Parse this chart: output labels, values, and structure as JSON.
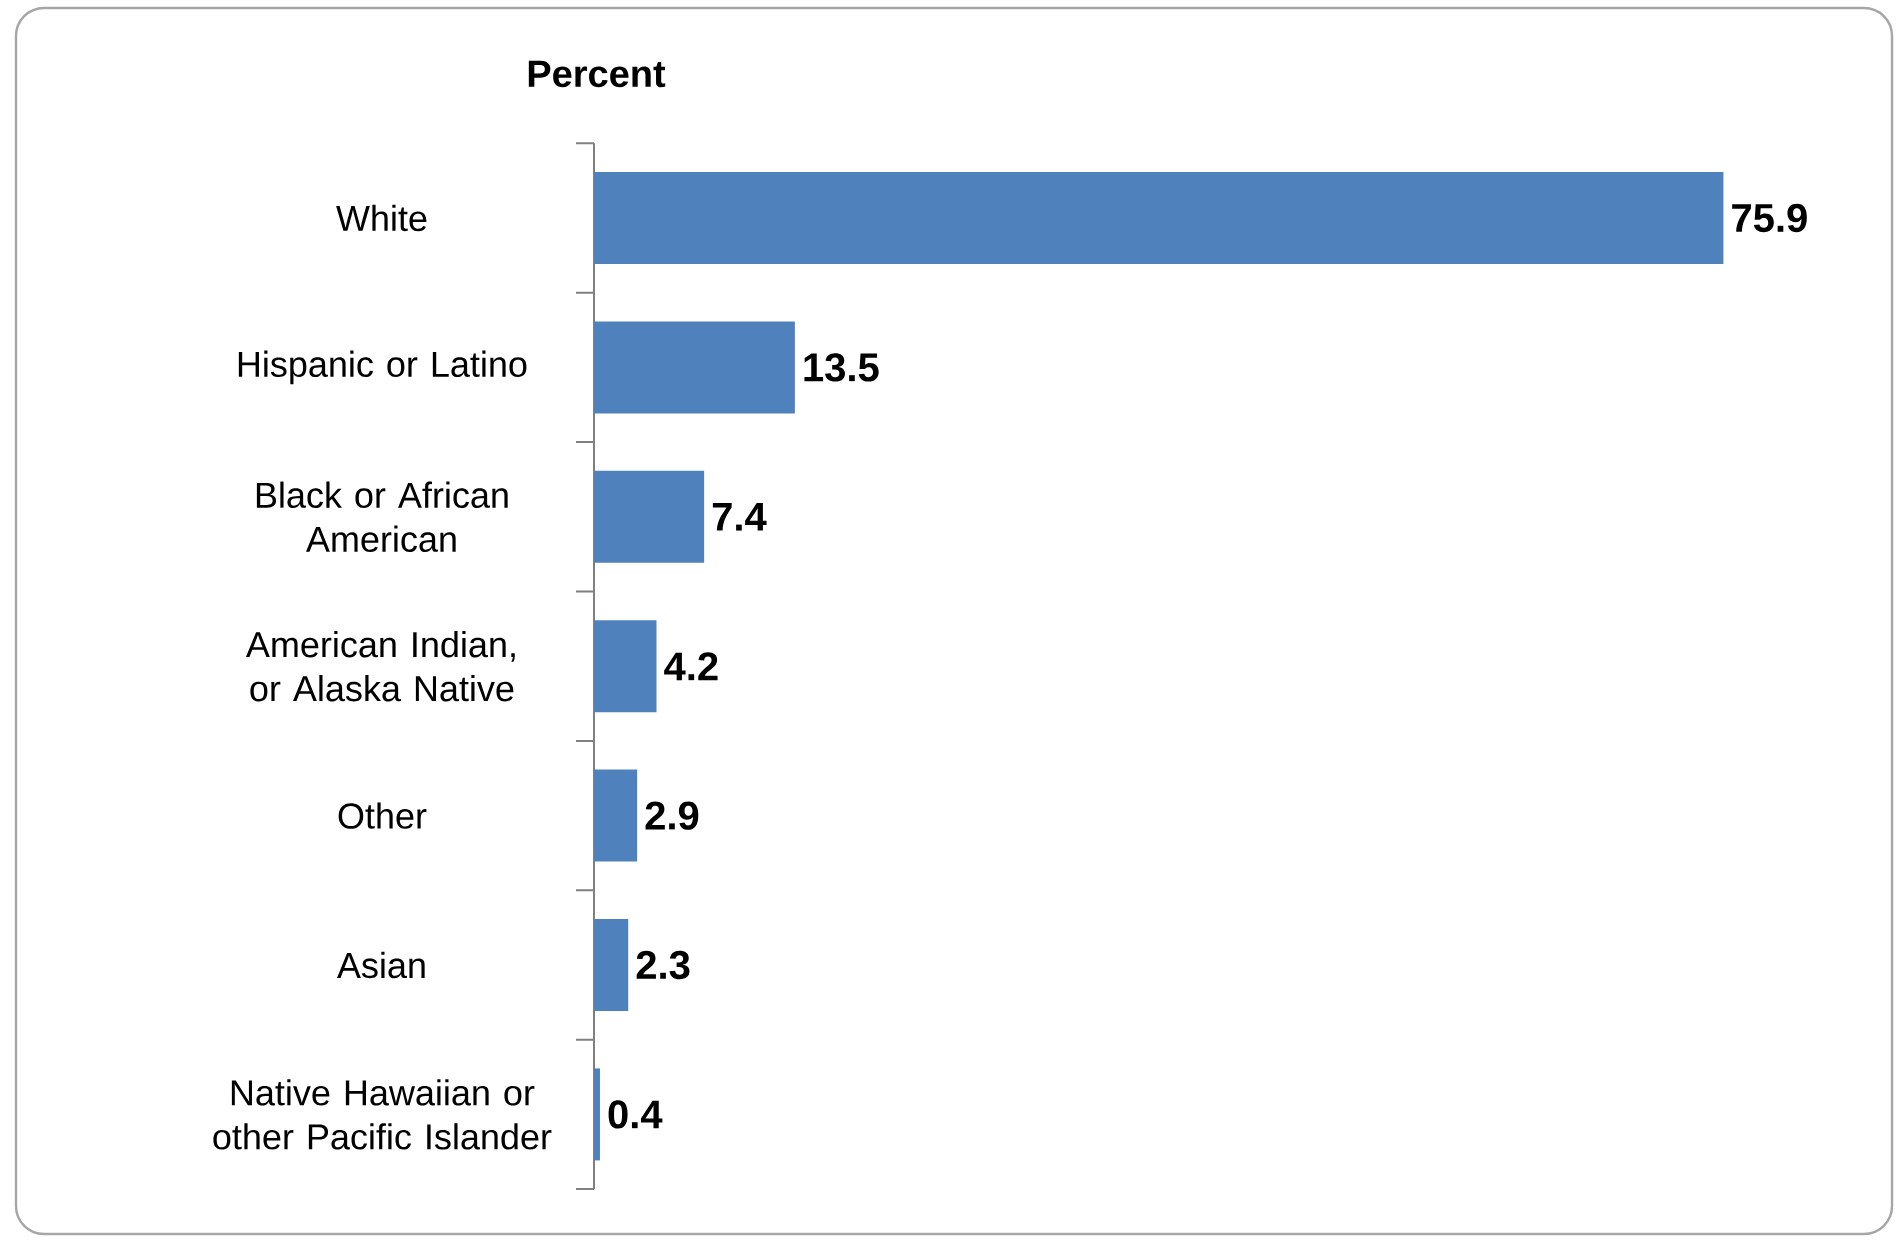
{
  "chart_data": {
    "type": "bar",
    "orientation": "horizontal",
    "title": "Percent",
    "categories": [
      "White",
      "Hispanic or Latino",
      "Black or African American",
      "American Indian, or Alaska Native",
      "Other",
      "Asian",
      "Native Hawaiian or other Pacific Islander"
    ],
    "values": [
      75.9,
      13.5,
      7.4,
      4.2,
      2.9,
      2.3,
      0.4
    ],
    "color": "#4f81bd",
    "data_labels": true
  }
}
